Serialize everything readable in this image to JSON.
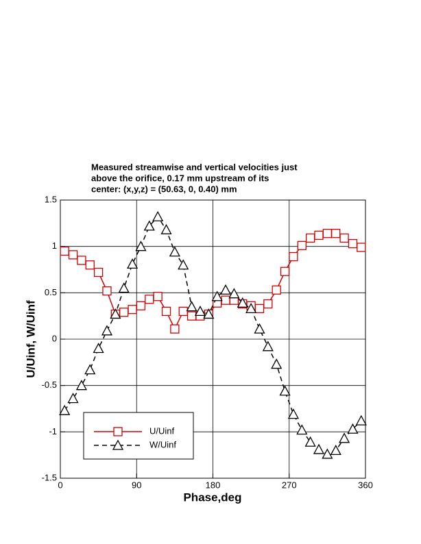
{
  "chart_data": {
    "type": "line",
    "title": [
      "Measured streamwise and vertical velocities just",
      "above the orifice, 0.17 mm upstream of its",
      "center:  (x,y,z) = (50.63, 0, 0.40) mm"
    ],
    "x_label": "Phase,deg",
    "y_label": "U/Uinf, W/Uinf",
    "x": [
      5,
      15,
      25,
      35,
      45,
      55,
      65,
      75,
      85,
      95,
      105,
      115,
      125,
      135,
      145,
      155,
      165,
      175,
      185,
      195,
      205,
      215,
      225,
      235,
      245,
      255,
      265,
      275,
      285,
      295,
      305,
      315,
      325,
      335,
      345,
      355
    ],
    "series": [
      {
        "name": "U/Uinf",
        "color": "#d40000",
        "marker": "square",
        "dash": false,
        "values": [
          0.95,
          0.91,
          0.85,
          0.8,
          0.72,
          0.52,
          0.27,
          0.29,
          0.32,
          0.36,
          0.43,
          0.46,
          0.3,
          0.11,
          0.3,
          0.25,
          0.25,
          0.27,
          0.39,
          0.42,
          0.42,
          0.38,
          0.36,
          0.33,
          0.38,
          0.53,
          0.73,
          0.89,
          1.01,
          1.09,
          1.12,
          1.14,
          1.14,
          1.09,
          1.03,
          0.99
        ]
      },
      {
        "name": "W/Uinf",
        "color": "#000000",
        "marker": "triangle",
        "dash": true,
        "values": [
          -0.77,
          -0.64,
          -0.5,
          -0.33,
          -0.1,
          0.09,
          0.27,
          0.55,
          0.81,
          1.0,
          1.22,
          1.32,
          1.18,
          0.94,
          0.8,
          0.35,
          0.3,
          0.27,
          0.46,
          0.53,
          0.49,
          0.39,
          0.33,
          0.11,
          -0.08,
          -0.27,
          -0.56,
          -0.81,
          -0.98,
          -1.11,
          -1.19,
          -1.24,
          -1.2,
          -1.07,
          -0.97,
          -0.88
        ]
      }
    ],
    "xlim": [
      0,
      360
    ],
    "xticks": [
      0,
      90,
      180,
      270,
      360
    ],
    "ylim": [
      -1.5,
      1.5
    ],
    "yticks": [
      -1.5,
      -1,
      -0.5,
      0,
      0.5,
      1,
      1.5
    ],
    "grid": true
  }
}
